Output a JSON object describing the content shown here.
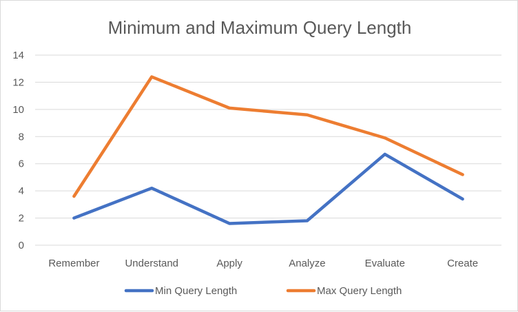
{
  "chart_data": {
    "type": "line",
    "title": "Minimum and Maximum Query Length",
    "xlabel": "",
    "ylabel": "",
    "categories": [
      "Remember",
      "Understand",
      "Apply",
      "Analyze",
      "Evaluate",
      "Create"
    ],
    "series": [
      {
        "name": "Min Query Length",
        "values": [
          2.0,
          4.2,
          1.6,
          1.8,
          6.7,
          3.4
        ],
        "color": "#4472c4"
      },
      {
        "name": "Max Query Length",
        "values": [
          3.6,
          12.4,
          10.1,
          9.6,
          7.9,
          5.2
        ],
        "color": "#ed7d31"
      }
    ],
    "ylim": [
      0,
      14
    ],
    "yticks": [
      0,
      2,
      4,
      6,
      8,
      10,
      12,
      14
    ],
    "grid": true,
    "legend": "bottom"
  }
}
